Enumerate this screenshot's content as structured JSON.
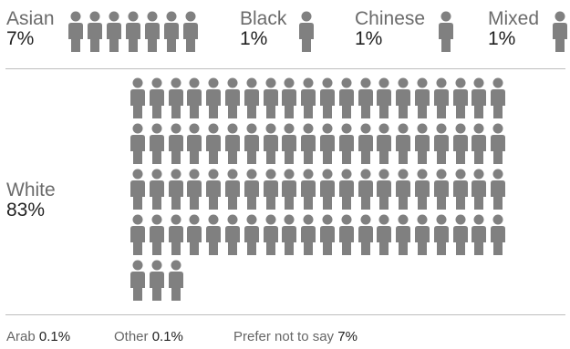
{
  "chart_data": {
    "type": "pictogram",
    "icon": "person-icon",
    "icon_color": "#808080",
    "groups": [
      {
        "label": "Asian",
        "percent": "7%",
        "value": 7,
        "icons": 7
      },
      {
        "label": "Black",
        "percent": "1%",
        "value": 1,
        "icons": 1
      },
      {
        "label": "Chinese",
        "percent": "1%",
        "value": 1,
        "icons": 1
      },
      {
        "label": "Mixed",
        "percent": "1%",
        "value": 1,
        "icons": 1
      },
      {
        "label": "White",
        "percent": "83%",
        "value": 83,
        "icons": 83
      }
    ],
    "footnotes": [
      {
        "label": "Arab",
        "value": "0.1%"
      },
      {
        "label": "Other",
        "value": "0.1%"
      },
      {
        "label": "Prefer not to say",
        "value": "7%"
      }
    ]
  }
}
